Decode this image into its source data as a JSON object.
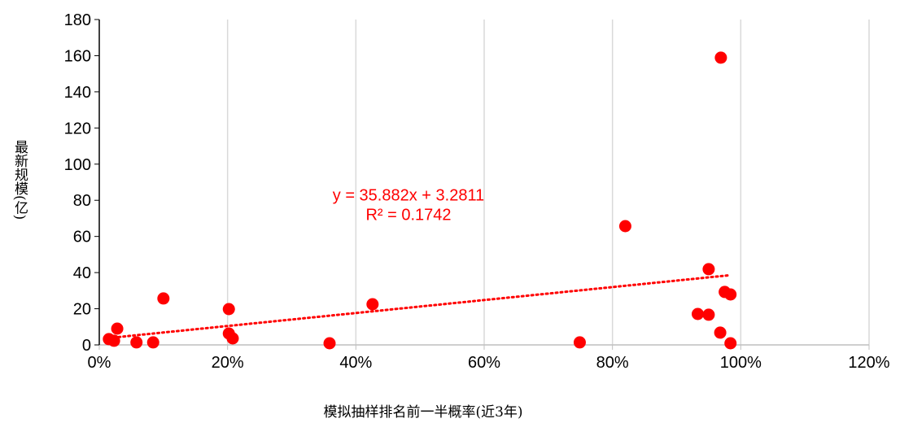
{
  "chart_data": {
    "type": "scatter",
    "x_label": "模拟抽样排名前一半概率(近3年)",
    "y_label": "最新规模(亿)",
    "series": [
      {
        "color": "#ff0000",
        "x": [
          0.015,
          0.023,
          0.028,
          0.058,
          0.084,
          0.1,
          0.202,
          0.202,
          0.208,
          0.359,
          0.426,
          0.749,
          0.82,
          0.969,
          0.95,
          0.933,
          0.95,
          0.968,
          0.975,
          0.984,
          0.984
        ],
        "values": [
          3.2,
          2.3,
          9.0,
          1.4,
          1.4,
          25.7,
          19.8,
          6.3,
          3.6,
          0.9,
          22.5,
          1.4,
          65.7,
          158.9,
          41.9,
          17.1,
          16.7,
          6.8,
          29.3,
          27.9,
          0.9
        ]
      }
    ],
    "trendline": {
      "color": "#ff0000",
      "slope": 35.882,
      "intercept": 3.2811,
      "equation": "y = 35.882x + 3.2811",
      "r_squared": "R² = 0.1742"
    },
    "xlim": [
      0,
      1.2
    ],
    "xticks": [
      {
        "value": 0,
        "label": "0%"
      },
      {
        "value": 0.2,
        "label": "20%"
      },
      {
        "value": 0.4,
        "label": "40%"
      },
      {
        "value": 0.6,
        "label": "60%"
      },
      {
        "value": 0.8,
        "label": "80%"
      },
      {
        "value": 1.0,
        "label": "100%"
      },
      {
        "value": 1.2,
        "label": "120%"
      }
    ],
    "ylim": [
      0,
      180
    ],
    "yticks": [
      0,
      20,
      40,
      60,
      80,
      100,
      120,
      140,
      160,
      180
    ],
    "grid": true
  }
}
